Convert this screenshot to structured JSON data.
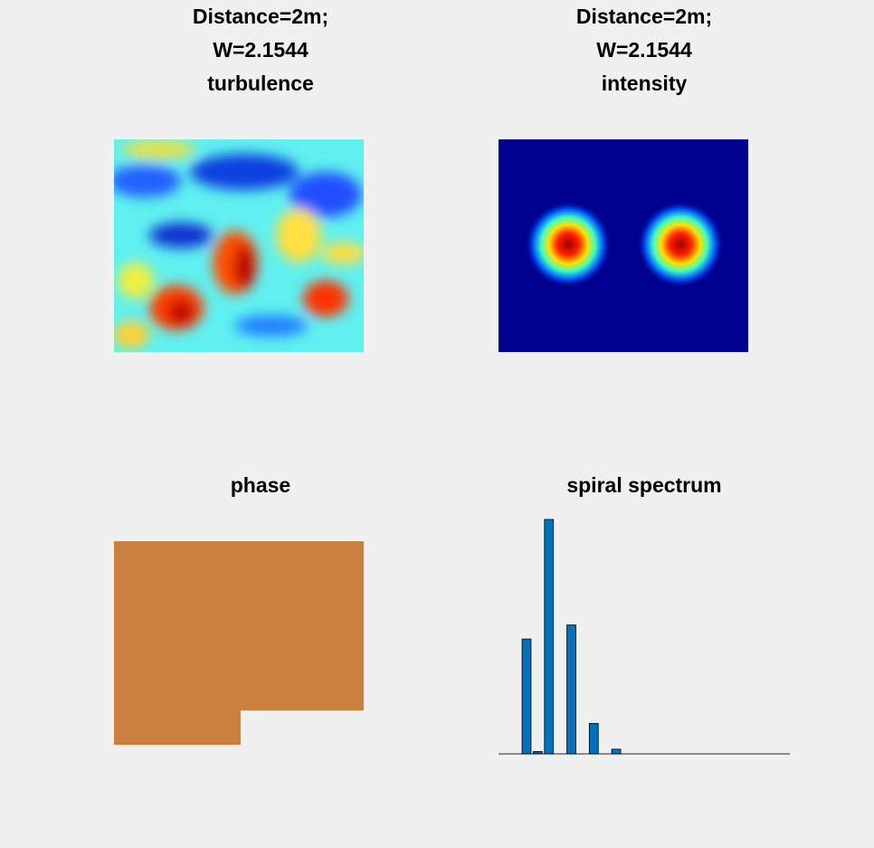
{
  "panels": [
    {
      "title": [
        "Distance=2m;",
        "W=2.1544",
        "turbulence"
      ]
    },
    {
      "title": [
        "Distance=2m;",
        "W=2.1544",
        "intensity"
      ]
    },
    {
      "title": [
        "phase"
      ]
    }
  ],
  "chart_data": {
    "type": "bar",
    "title": "spiral spectrum",
    "values": [
      0,
      0,
      0.49,
      0.01,
      1,
      0,
      0.55,
      0,
      0.13,
      0,
      0.02,
      0,
      0,
      0,
      0,
      0,
      0,
      0,
      0,
      0,
      0,
      0,
      0,
      0,
      0,
      0
    ],
    "color": "#0072bd",
    "ylim": [
      0,
      1
    ]
  }
}
